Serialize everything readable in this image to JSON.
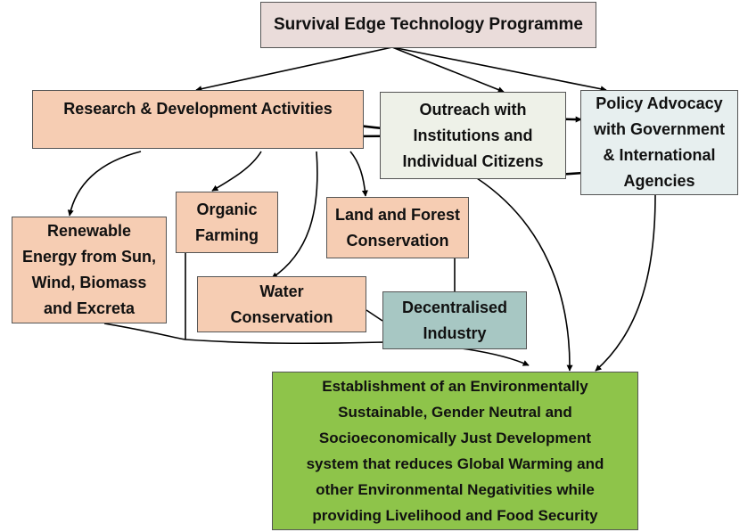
{
  "colors": {
    "title": "#eadcda",
    "pinkish": "#f6cdb3",
    "outreach": "#eef1e8",
    "policy": "#e7efef",
    "industry": "#a7c7c3",
    "goal": "#8ec44a",
    "lines": "#000000"
  },
  "diagram": {
    "title": "Survival Edge Technology Programme",
    "research": "Research & Development Activities",
    "outreach": "Outreach with\nInstitutions and\nIndividual Citizens",
    "policy": "Policy Advocacy\nwith Government\n& International\nAgencies",
    "organic": "Organic\nFarming",
    "land_forest": "Land and Forest\nConservation",
    "renewable": "Renewable\nEnergy from Sun,\nWind, Biomass\nand Excreta",
    "water": "Water\nConservation",
    "industry": "Decentralised\nIndustry",
    "goal": "Establishment of an Environmentally\nSustainable, Gender Neutral and\nSocioeconomically Just Development\nsystem that reduces Global Warming and\nother Environmental Negativities while\nproviding Livelihood and Food Security"
  }
}
